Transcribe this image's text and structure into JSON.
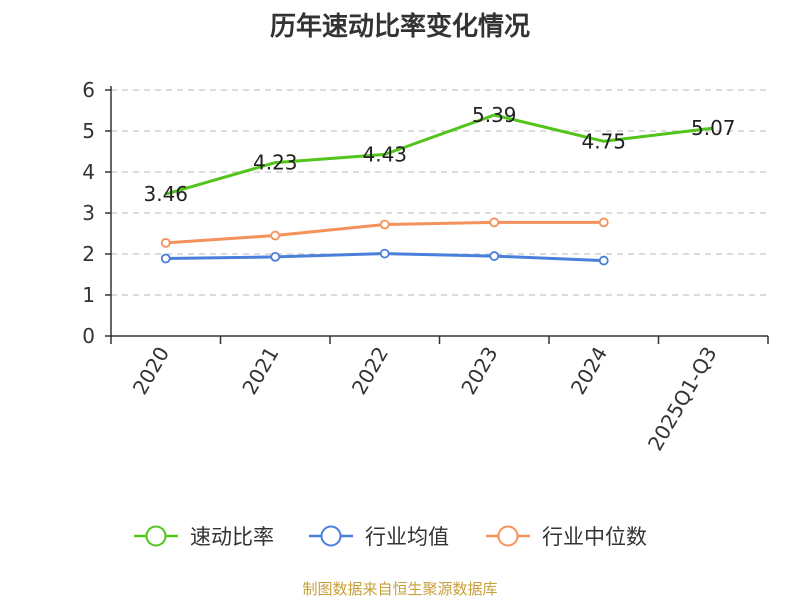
{
  "chart_data": {
    "type": "line",
    "title": "历年速动比率变化情况",
    "categories": [
      "2020",
      "2021",
      "2022",
      "2023",
      "2024",
      "2025Q1-Q3"
    ],
    "ylim": [
      0,
      6
    ],
    "yticks": [
      0,
      1,
      2,
      3,
      4,
      5,
      6
    ],
    "grid": true,
    "legend_position": "bottom",
    "series": [
      {
        "name": "速动比率",
        "color": "#52c41a",
        "values": [
          3.46,
          4.23,
          4.43,
          5.39,
          4.75,
          5.07
        ],
        "show_labels": true,
        "markers": false
      },
      {
        "name": "行业均值",
        "color": "#4a7fdb",
        "values": [
          1.89,
          1.93,
          2.01,
          1.95,
          1.84,
          null
        ],
        "show_labels": false,
        "markers": true
      },
      {
        "name": "行业中位数",
        "color": "#f5915a",
        "values": [
          2.27,
          2.45,
          2.72,
          2.77,
          2.77,
          null
        ],
        "show_labels": false,
        "markers": true
      }
    ]
  },
  "footer": {
    "source": "制图数据来自恒生聚源数据库"
  }
}
